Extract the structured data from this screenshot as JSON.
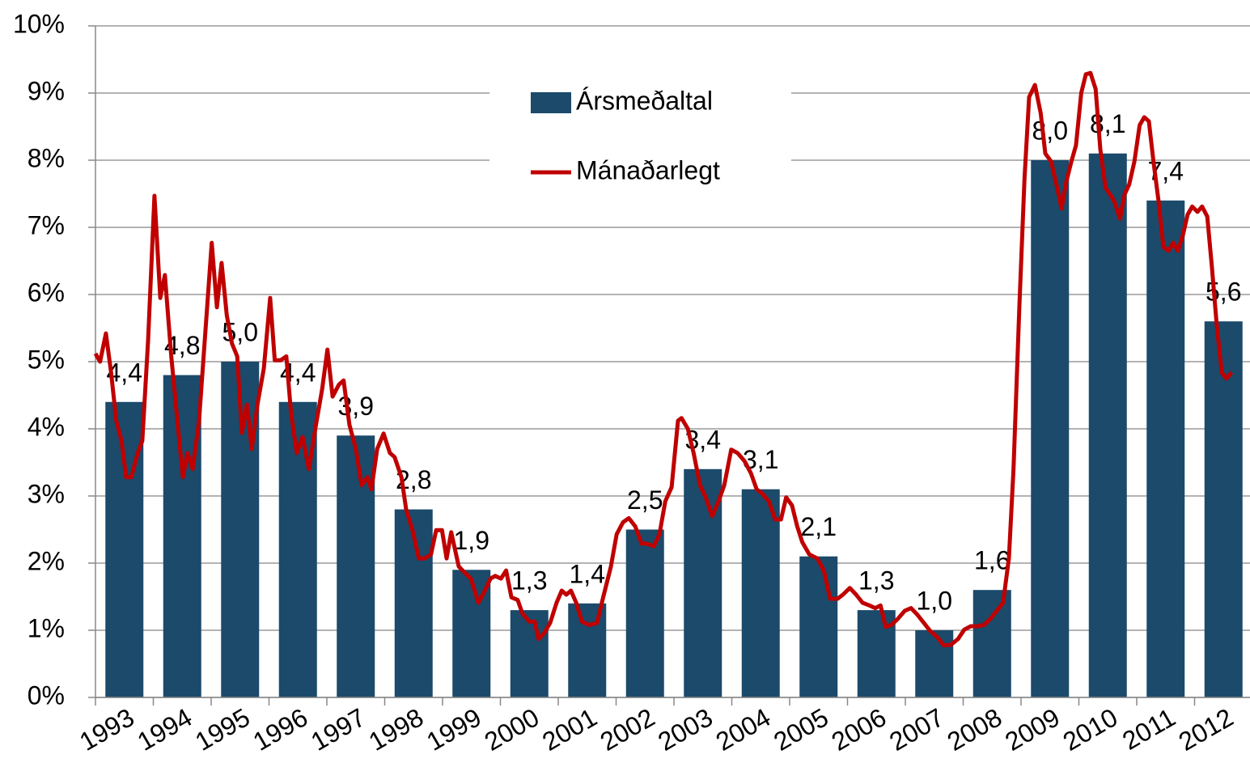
{
  "chart_data": {
    "type": "bar",
    "categories": [
      "1993",
      "1994",
      "1995",
      "1996",
      "1997",
      "1998",
      "1999",
      "2000",
      "2001",
      "2002",
      "2003",
      "2004",
      "2005",
      "2006",
      "2007",
      "2008",
      "2009",
      "2010",
      "2011",
      "2012"
    ],
    "xlim": [
      1993,
      2013
    ],
    "ylim": [
      0,
      10
    ],
    "yticks": [
      {
        "value": 0,
        "label": "0%"
      },
      {
        "value": 1,
        "label": "1%"
      },
      {
        "value": 2,
        "label": "2%"
      },
      {
        "value": 3,
        "label": "3%"
      },
      {
        "value": 4,
        "label": "4%"
      },
      {
        "value": 5,
        "label": "5%"
      },
      {
        "value": 6,
        "label": "6%"
      },
      {
        "value": 7,
        "label": "7%"
      },
      {
        "value": 8,
        "label": "8%"
      },
      {
        "value": 9,
        "label": "9%"
      },
      {
        "value": 10,
        "label": "10%"
      }
    ],
    "grid": true,
    "legend": "top",
    "series": [
      {
        "name": "Ársmeðaltal",
        "type": "bar",
        "color": "#1b4a6b",
        "values": [
          4.4,
          4.8,
          5.0,
          4.4,
          3.9,
          2.8,
          1.9,
          1.3,
          1.4,
          2.5,
          3.4,
          3.1,
          2.1,
          1.3,
          1.0,
          1.6,
          8.0,
          8.1,
          7.4,
          5.6
        ],
        "value_labels": [
          "4,4",
          "4,8",
          "5,0",
          "4,4",
          "3,9",
          "2,8",
          "1,9",
          "1,3",
          "1,4",
          "2,5",
          "3,4",
          "3,1",
          "2,1",
          "1,3",
          "1,0",
          "1,6",
          "8,0",
          "8,1",
          "7,4",
          "5,6"
        ]
      },
      {
        "name": "Mánaðarlegt",
        "type": "line",
        "color": "#c00000",
        "x": [
          1993.0,
          1993.08,
          1993.18,
          1993.27,
          1993.36,
          1993.45,
          1993.53,
          1993.62,
          1993.73,
          1993.81,
          1993.91,
          1994.02,
          1994.12,
          1994.2,
          1994.31,
          1994.43,
          1994.51,
          1994.59,
          1994.68,
          1994.79,
          1994.92,
          1995.01,
          1995.1,
          1995.18,
          1995.27,
          1995.36,
          1995.45,
          1995.53,
          1995.62,
          1995.7,
          1995.8,
          1995.91,
          1996.02,
          1996.1,
          1996.2,
          1996.3,
          1996.38,
          1996.48,
          1996.58,
          1996.69,
          1996.8,
          1996.92,
          1997.01,
          1997.1,
          1997.21,
          1997.29,
          1997.39,
          1997.5,
          1997.6,
          1997.7,
          1997.77,
          1997.87,
          1997.98,
          1998.09,
          1998.17,
          1998.29,
          1998.37,
          1998.48,
          1998.59,
          1998.69,
          1998.8,
          1998.89,
          1998.99,
          1999.07,
          1999.15,
          1999.28,
          1999.38,
          1999.49,
          1999.62,
          1999.73,
          1999.83,
          1999.91,
          2000.01,
          2000.1,
          2000.19,
          2000.3,
          2000.38,
          2000.5,
          2000.59,
          2000.66,
          2000.76,
          2000.86,
          2000.97,
          2001.06,
          2001.14,
          2001.22,
          2001.31,
          2001.41,
          2001.53,
          2001.67,
          2001.77,
          2001.91,
          2002.01,
          2002.12,
          2002.22,
          2002.33,
          2002.44,
          2002.54,
          2002.65,
          2002.75,
          2002.85,
          2002.96,
          2003.07,
          2003.13,
          2003.24,
          2003.34,
          2003.45,
          2003.55,
          2003.66,
          2003.77,
          2003.87,
          2003.99,
          2004.1,
          2004.22,
          2004.33,
          2004.43,
          2004.52,
          2004.64,
          2004.75,
          2004.85,
          2004.94,
          2005.04,
          2005.13,
          2005.22,
          2005.34,
          2005.48,
          2005.59,
          2005.7,
          2005.83,
          2005.92,
          2006.04,
          2006.15,
          2006.26,
          2006.38,
          2006.48,
          2006.57,
          2006.66,
          2006.76,
          2006.87,
          2006.99,
          2007.1,
          2007.21,
          2007.32,
          2007.43,
          2007.55,
          2007.66,
          2007.78,
          2007.91,
          2008.02,
          2008.13,
          2008.24,
          2008.36,
          2008.47,
          2008.58,
          2008.69,
          2008.79,
          2008.87,
          2008.97,
          2009.06,
          2009.14,
          2009.24,
          2009.34,
          2009.42,
          2009.52,
          2009.62,
          2009.7,
          2009.78,
          2009.87,
          2009.95,
          2010.04,
          2010.12,
          2010.2,
          2010.29,
          2010.37,
          2010.46,
          2010.54,
          2010.62,
          2010.71,
          2010.79,
          2010.87,
          2010.96,
          2011.05,
          2011.13,
          2011.21,
          2011.29,
          2011.38,
          2011.46,
          2011.55,
          2011.63,
          2011.71,
          2011.8,
          2011.88,
          2011.96,
          2012.05,
          2012.13,
          2012.22,
          2012.3,
          2012.38,
          2012.47,
          2012.55,
          2012.64
        ],
        "values": [
          5.12,
          5.0,
          5.42,
          4.84,
          4.12,
          3.82,
          3.28,
          3.28,
          3.64,
          3.82,
          5.33,
          7.47,
          5.95,
          6.29,
          5.08,
          4.0,
          3.28,
          3.64,
          3.4,
          4.12,
          5.69,
          6.77,
          5.81,
          6.47,
          5.69,
          5.27,
          5.08,
          3.94,
          4.36,
          3.7,
          4.36,
          4.9,
          5.95,
          5.02,
          5.02,
          5.08,
          4.24,
          3.64,
          3.88,
          3.4,
          4.0,
          4.6,
          5.18,
          4.48,
          4.66,
          4.72,
          4.06,
          3.7,
          3.16,
          3.28,
          3.1,
          3.7,
          3.93,
          3.64,
          3.58,
          3.28,
          2.8,
          2.49,
          2.07,
          2.07,
          2.13,
          2.49,
          2.49,
          2.07,
          2.46,
          1.95,
          1.86,
          1.77,
          1.41,
          1.59,
          1.77,
          1.81,
          1.77,
          1.89,
          1.49,
          1.45,
          1.25,
          1.13,
          1.13,
          0.87,
          0.96,
          1.11,
          1.41,
          1.59,
          1.53,
          1.59,
          1.41,
          1.13,
          1.08,
          1.11,
          1.47,
          1.95,
          2.43,
          2.61,
          2.67,
          2.55,
          2.29,
          2.29,
          2.25,
          2.43,
          2.92,
          3.13,
          4.12,
          4.16,
          4.0,
          3.64,
          3.16,
          2.98,
          2.7,
          2.92,
          3.16,
          3.69,
          3.64,
          3.52,
          3.34,
          3.1,
          3.04,
          2.92,
          2.65,
          2.65,
          2.98,
          2.86,
          2.55,
          2.31,
          2.13,
          2.07,
          1.89,
          1.47,
          1.47,
          1.53,
          1.63,
          1.53,
          1.41,
          1.37,
          1.33,
          1.37,
          1.05,
          1.08,
          1.17,
          1.29,
          1.33,
          1.23,
          1.11,
          0.99,
          0.9,
          0.78,
          0.78,
          0.87,
          1.01,
          1.06,
          1.06,
          1.08,
          1.17,
          1.29,
          1.41,
          2.07,
          3.4,
          5.81,
          7.73,
          8.94,
          9.12,
          8.7,
          8.1,
          7.98,
          7.61,
          7.28,
          7.67,
          7.98,
          8.22,
          9.0,
          9.28,
          9.3,
          9.06,
          8.16,
          7.59,
          7.49,
          7.37,
          7.13,
          7.49,
          7.64,
          7.98,
          8.52,
          8.64,
          8.58,
          7.98,
          7.37,
          6.71,
          6.65,
          6.77,
          6.65,
          6.89,
          7.19,
          7.31,
          7.23,
          7.31,
          7.16,
          6.41,
          5.57,
          4.84,
          4.75,
          4.84
        ]
      }
    ]
  }
}
